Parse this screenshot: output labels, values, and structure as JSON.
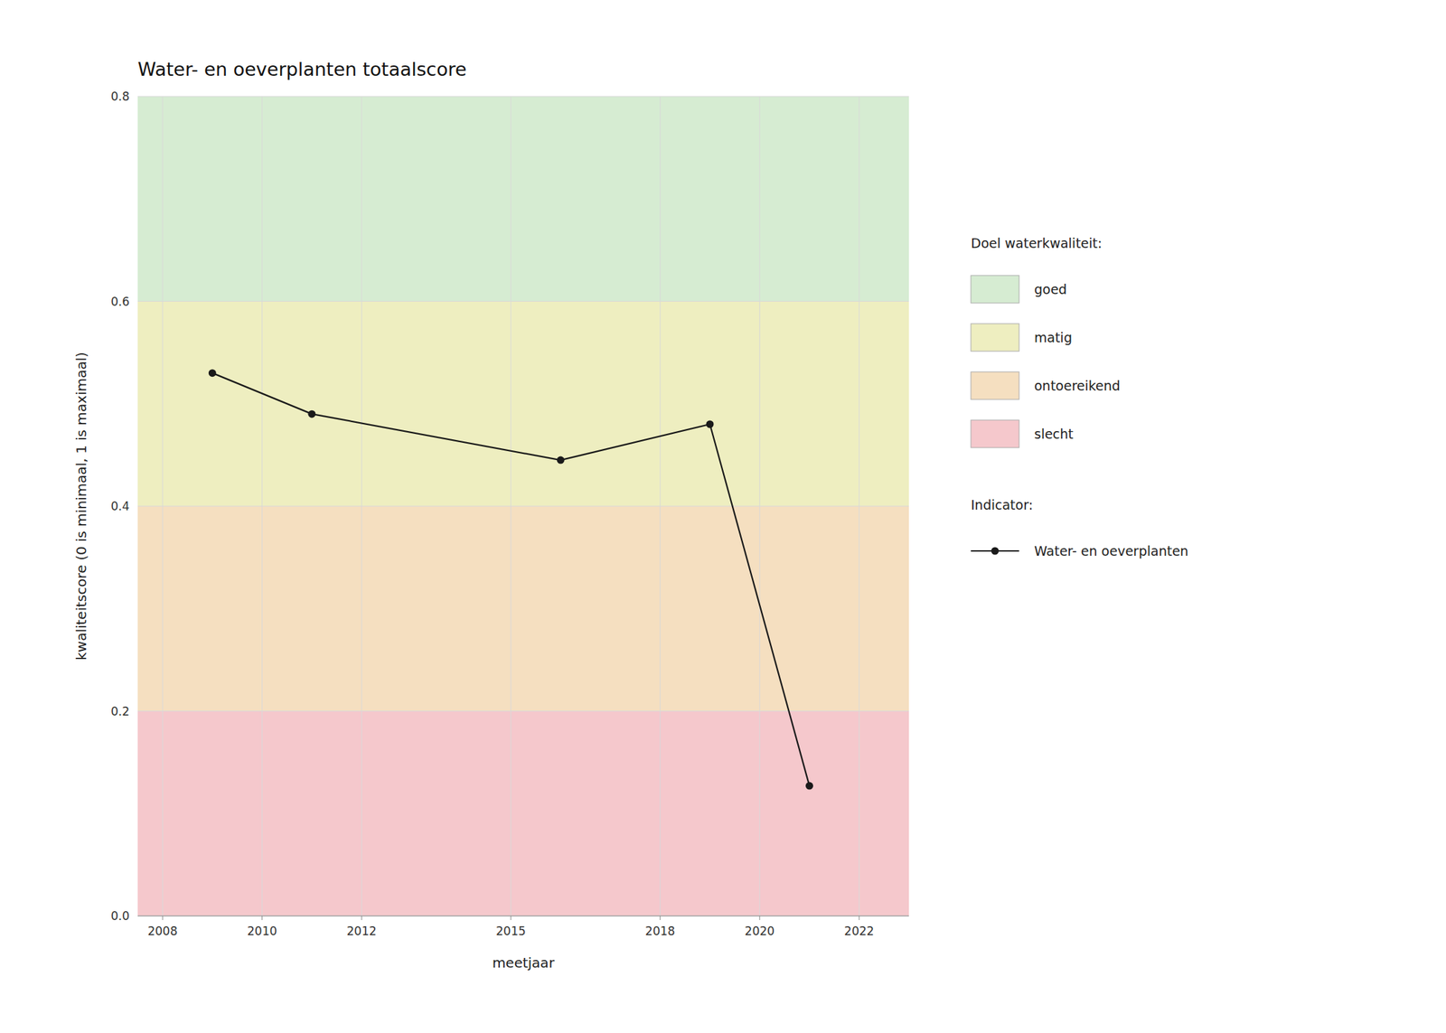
{
  "chart_data": {
    "type": "line",
    "title": "Water- en oeverplanten totaalscore",
    "x_label": "meetjaar",
    "y_label": "kwaliteitscore (0 is minimaal, 1 is maximaal)",
    "x": [
      2009,
      2011,
      2016,
      2019,
      2021
    ],
    "series": [
      {
        "name": "Water- en oeverplanten",
        "color": "#1a1a1a",
        "marker": "circle",
        "line_style": "solid",
        "values": [
          0.53,
          0.49,
          0.445,
          0.48,
          0.127
        ]
      }
    ],
    "xlim": [
      2007.5,
      2023.0
    ],
    "ylim": [
      0.0,
      0.8
    ],
    "xticks": [
      2008,
      2010,
      2012,
      2015,
      2018,
      2020,
      2022
    ],
    "yticks": [
      {
        "value": 0.0,
        "label": "0.0"
      },
      0.2,
      0.4,
      0.6,
      0.8
    ],
    "bands_title": "Doel waterkwaliteit:",
    "bands": [
      {
        "from": 0.6,
        "to": 0.8,
        "color": "#d6ecd2",
        "label": "goed"
      },
      {
        "from": 0.4,
        "to": 0.6,
        "color": "#eeeec0",
        "label": "matig"
      },
      {
        "from": 0.2,
        "to": 0.4,
        "color": "#f5dfc0",
        "label": "ontoereikend"
      },
      {
        "from": 0.0,
        "to": 0.2,
        "color": "#f5c8cc",
        "label": "slecht"
      }
    ],
    "series_title": "Indicator:",
    "grid": true,
    "legend": "right"
  }
}
